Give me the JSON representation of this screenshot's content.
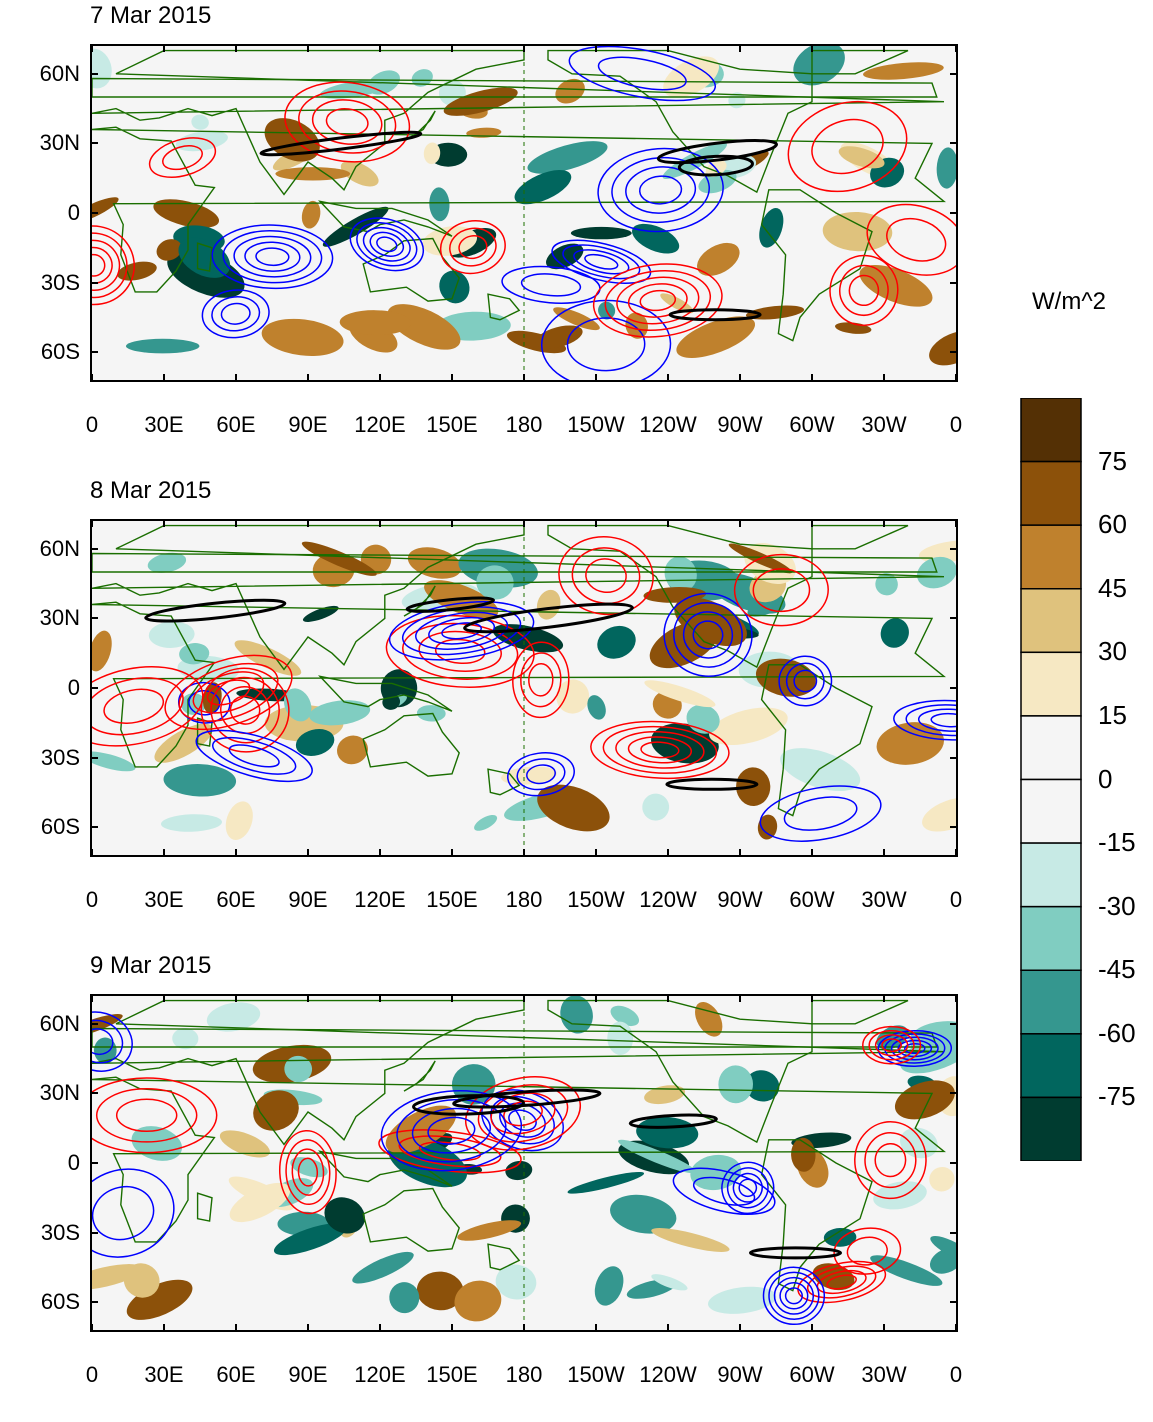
{
  "panels": [
    {
      "title": "7 Mar 2015",
      "seed": 7
    },
    {
      "title": "8 Mar 2015",
      "seed": 8
    },
    {
      "title": "9 Mar 2015",
      "seed": 9
    }
  ],
  "lat_labels": [
    "60N",
    "30N",
    "0",
    "30S",
    "60S"
  ],
  "lat_values": [
    60,
    30,
    0,
    -30,
    -60
  ],
  "lon_labels": [
    "0",
    "30E",
    "60E",
    "90E",
    "120E",
    "150E",
    "180",
    "150W",
    "120W",
    "90W",
    "60W",
    "30W",
    "0"
  ],
  "colorbar": {
    "unit": "W/m^2",
    "labels": [
      "75",
      "60",
      "45",
      "30",
      "15",
      "0",
      "-15",
      "-30",
      "-45",
      "-60",
      "-75"
    ],
    "colors": [
      "#543005",
      "#8c510a",
      "#bf812d",
      "#dfc27d",
      "#f6e8c3",
      "#f5f5f5",
      "#f5f5f5",
      "#c7eae5",
      "#80cdc1",
      "#35978f",
      "#01665e",
      "#003c30"
    ]
  },
  "colors": {
    "positive_contour": "#ff0000",
    "negative_contour": "#0000ff",
    "jet_contour": "#000000",
    "coastline": "#1a6e00"
  }
}
